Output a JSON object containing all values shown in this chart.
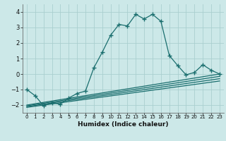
{
  "xlabel": "Humidex (Indice chaleur)",
  "bg_color": "#cce8e8",
  "grid_color": "#aacfcf",
  "line_color": "#1a6e6e",
  "xlim": [
    -0.5,
    23.5
  ],
  "ylim": [
    -2.5,
    4.5
  ],
  "xticks": [
    0,
    1,
    2,
    3,
    4,
    5,
    6,
    7,
    8,
    9,
    10,
    11,
    12,
    13,
    14,
    15,
    16,
    17,
    18,
    19,
    20,
    21,
    22,
    23
  ],
  "yticks": [
    -2,
    -1,
    0,
    1,
    2,
    3,
    4
  ],
  "main_x": [
    0,
    1,
    2,
    3,
    4,
    5,
    6,
    7,
    8,
    9,
    10,
    11,
    12,
    13,
    14,
    15,
    16,
    17,
    18,
    19,
    20,
    21,
    22,
    23
  ],
  "main_y": [
    -1.0,
    -1.4,
    -2.05,
    -1.85,
    -1.95,
    -1.55,
    -1.25,
    -1.1,
    0.4,
    1.4,
    2.5,
    3.2,
    3.1,
    3.85,
    3.55,
    3.85,
    3.4,
    1.2,
    0.55,
    -0.05,
    0.1,
    0.6,
    0.25,
    0.0
  ],
  "flat_lines": [
    {
      "x": [
        0,
        23
      ],
      "y": [
        -2.0,
        0.0
      ]
    },
    {
      "x": [
        0,
        23
      ],
      "y": [
        -2.05,
        -0.15
      ]
    },
    {
      "x": [
        0,
        23
      ],
      "y": [
        -2.1,
        -0.3
      ]
    },
    {
      "x": [
        0,
        23
      ],
      "y": [
        -2.15,
        -0.45
      ]
    }
  ]
}
